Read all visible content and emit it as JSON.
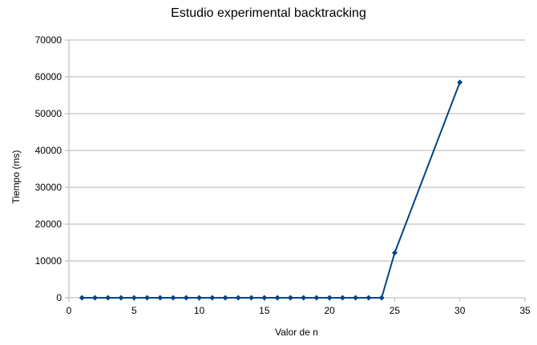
{
  "chart_data": {
    "type": "line",
    "title": "Estudio experimental backtracking",
    "xlabel": "Valor de n",
    "ylabel": "Tiempo (ms)",
    "xlim": [
      0,
      35
    ],
    "ylim": [
      0,
      70000
    ],
    "x_ticks": [
      0,
      5,
      10,
      15,
      20,
      25,
      30,
      35
    ],
    "y_ticks": [
      0,
      10000,
      20000,
      30000,
      40000,
      50000,
      60000,
      70000
    ],
    "grid": "horizontal",
    "legend": "none",
    "series": [
      {
        "color": "#004586",
        "marker": "diamond",
        "points": [
          [
            1,
            0
          ],
          [
            2,
            0
          ],
          [
            3,
            0
          ],
          [
            4,
            0
          ],
          [
            5,
            0
          ],
          [
            6,
            0
          ],
          [
            7,
            0
          ],
          [
            8,
            0
          ],
          [
            9,
            0
          ],
          [
            10,
            0
          ],
          [
            11,
            0
          ],
          [
            12,
            0
          ],
          [
            13,
            0
          ],
          [
            14,
            0
          ],
          [
            15,
            0
          ],
          [
            16,
            0
          ],
          [
            17,
            0
          ],
          [
            18,
            0
          ],
          [
            19,
            0
          ],
          [
            20,
            0
          ],
          [
            21,
            0
          ],
          [
            22,
            0
          ],
          [
            23,
            0
          ],
          [
            24,
            0
          ],
          [
            25,
            12200
          ],
          [
            30,
            58500
          ]
        ]
      }
    ]
  }
}
